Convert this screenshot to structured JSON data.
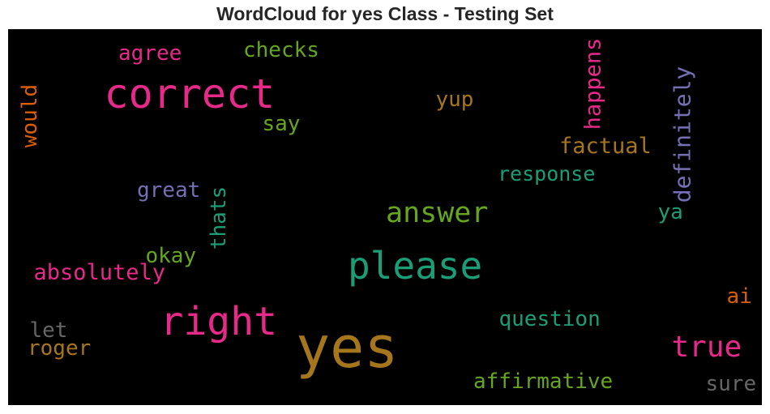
{
  "chart_data": {
    "type": "wordcloud",
    "title": "WordCloud for yes Class - Testing Set",
    "background": "#000000",
    "colormap": "Dark2",
    "words": [
      {
        "text": "yes",
        "color": "#a6761d",
        "orientation": "horizontal"
      },
      {
        "text": "correct",
        "color": "#e7298a",
        "orientation": "horizontal"
      },
      {
        "text": "please",
        "color": "#1b9e77",
        "orientation": "horizontal"
      },
      {
        "text": "right",
        "color": "#e7298a",
        "orientation": "horizontal"
      },
      {
        "text": "answer",
        "color": "#66a61e",
        "orientation": "horizontal"
      },
      {
        "text": "true",
        "color": "#e7298a",
        "orientation": "horizontal"
      },
      {
        "text": "definitely",
        "color": "#7570b3",
        "orientation": "vertical"
      },
      {
        "text": "happens",
        "color": "#e7298a",
        "orientation": "vertical"
      },
      {
        "text": "factual",
        "color": "#a6761d",
        "orientation": "horizontal"
      },
      {
        "text": "response",
        "color": "#1b9e77",
        "orientation": "horizontal"
      },
      {
        "text": "question",
        "color": "#1b9e77",
        "orientation": "horizontal"
      },
      {
        "text": "affirmative",
        "color": "#66a61e",
        "orientation": "horizontal"
      },
      {
        "text": "absolutely",
        "color": "#e7298a",
        "orientation": "horizontal"
      },
      {
        "text": "checks",
        "color": "#66a61e",
        "orientation": "horizontal"
      },
      {
        "text": "agree",
        "color": "#e7298a",
        "orientation": "horizontal"
      },
      {
        "text": "yup",
        "color": "#a6761d",
        "orientation": "horizontal"
      },
      {
        "text": "say",
        "color": "#66a61e",
        "orientation": "horizontal"
      },
      {
        "text": "great",
        "color": "#7570b3",
        "orientation": "horizontal"
      },
      {
        "text": "thats",
        "color": "#1b9e77",
        "orientation": "vertical"
      },
      {
        "text": "okay",
        "color": "#66a61e",
        "orientation": "horizontal"
      },
      {
        "text": "would",
        "color": "#d95f02",
        "orientation": "vertical"
      },
      {
        "text": "ya",
        "color": "#1b9e77",
        "orientation": "horizontal"
      },
      {
        "text": "ai",
        "color": "#d95f02",
        "orientation": "horizontal"
      },
      {
        "text": "let",
        "color": "#666666",
        "orientation": "horizontal"
      },
      {
        "text": "roger",
        "color": "#a6761d",
        "orientation": "horizontal"
      },
      {
        "text": "sure",
        "color": "#666666",
        "orientation": "horizontal"
      }
    ]
  }
}
